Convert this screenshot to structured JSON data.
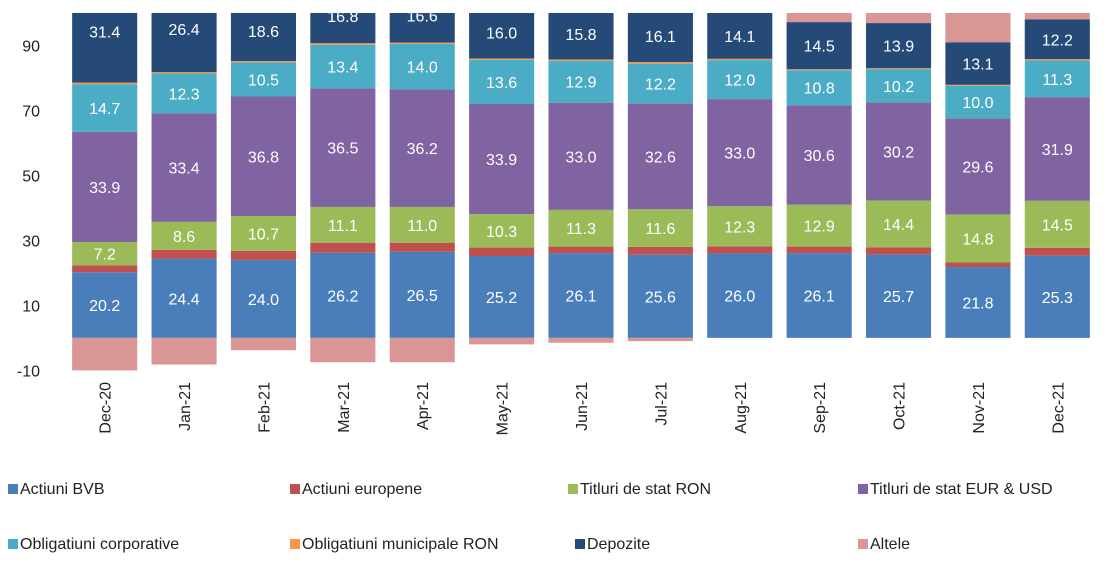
{
  "chart_data": {
    "type": "stacked_bar",
    "categories": [
      "Dec-20",
      "Jan-21",
      "Feb-21",
      "Mar-21",
      "Apr-21",
      "May-21",
      "Jun-21",
      "Jul-21",
      "Aug-21",
      "Sep-21",
      "Oct-21",
      "Nov-21",
      "Dec-21"
    ],
    "ylim": [
      -10.5,
      100
    ],
    "yticks": [
      -10,
      10,
      30,
      50,
      70,
      90
    ],
    "legend": "bottom",
    "series": [
      {
        "name": "Actiuni BVB",
        "color": "#4a7ebb",
        "values": [
          20.2,
          24.4,
          24.0,
          26.2,
          26.5,
          25.2,
          26.1,
          25.6,
          26.0,
          26.1,
          25.7,
          21.8,
          25.3
        ],
        "value_labels": [
          "20.2",
          "24.4",
          "24.0",
          "26.2",
          "26.5",
          "25.2",
          "26.1",
          "25.6",
          "26.0",
          "26.1",
          "25.7",
          "21.8",
          "25.3"
        ]
      },
      {
        "name": "Actiuni europene",
        "color": "#c0504d",
        "values": [
          2.1,
          2.7,
          2.8,
          3.0,
          2.8,
          2.6,
          2.0,
          2.4,
          2.2,
          2.0,
          2.2,
          1.4,
          2.4
        ]
      },
      {
        "name": "Titluri de stat RON",
        "color": "#9bbb59",
        "values": [
          7.2,
          8.6,
          10.7,
          11.1,
          11.0,
          10.3,
          11.3,
          11.6,
          12.3,
          12.9,
          14.4,
          14.8,
          14.5
        ],
        "value_labels": [
          "7.2",
          "8.6",
          "10.7",
          "11.1",
          "11.0",
          "10.3",
          "11.3",
          "11.6",
          "12.3",
          "12.9",
          "14.4",
          "14.8",
          "14.5"
        ]
      },
      {
        "name": "Titluri de stat EUR & USD",
        "color": "#8064a2",
        "values": [
          33.9,
          33.4,
          36.8,
          36.5,
          36.2,
          33.9,
          33.0,
          32.6,
          33.0,
          30.6,
          30.2,
          29.6,
          31.9
        ],
        "value_labels": [
          "33.9",
          "33.4",
          "36.8",
          "36.5",
          "36.2",
          "33.9",
          "33.0",
          "32.6",
          "33.0",
          "30.6",
          "30.2",
          "29.6",
          "31.9"
        ]
      },
      {
        "name": "Obligatiuni corporative",
        "color": "#4bacc6",
        "values": [
          14.7,
          12.3,
          10.5,
          13.4,
          14.0,
          13.6,
          12.9,
          12.2,
          12.0,
          10.8,
          10.2,
          10.0,
          11.3
        ],
        "value_labels": [
          "14.7",
          "12.3",
          "10.5",
          "13.4",
          "14.0",
          "13.6",
          "12.9",
          "12.2",
          "12.0",
          "10.8",
          "10.2",
          "10.0",
          "11.3"
        ]
      },
      {
        "name": "Obligatiuni municipale RON",
        "color": "#f79646",
        "values": [
          0.5,
          0.4,
          0.4,
          0.5,
          0.4,
          0.4,
          0.4,
          0.5,
          0.4,
          0.3,
          0.3,
          0.3,
          0.4
        ]
      },
      {
        "name": "Depozite",
        "color": "#254a77",
        "values": [
          31.4,
          26.4,
          18.6,
          16.8,
          16.6,
          16.0,
          15.8,
          16.1,
          14.1,
          14.5,
          13.9,
          13.1,
          12.2
        ],
        "value_labels": [
          "31.4",
          "26.4",
          "18.6",
          "16.8",
          "16.6",
          "16.0",
          "15.8",
          "16.1",
          "14.1",
          "14.5",
          "13.9",
          "13.1",
          "12.2"
        ]
      },
      {
        "name": "Altele",
        "color": "#d99694",
        "values": [
          -10.0,
          -8.2,
          -3.8,
          -7.5,
          -7.5,
          -2.0,
          -1.5,
          -1.0,
          0,
          2.8,
          3.1,
          9.0,
          2.0
        ]
      }
    ]
  }
}
